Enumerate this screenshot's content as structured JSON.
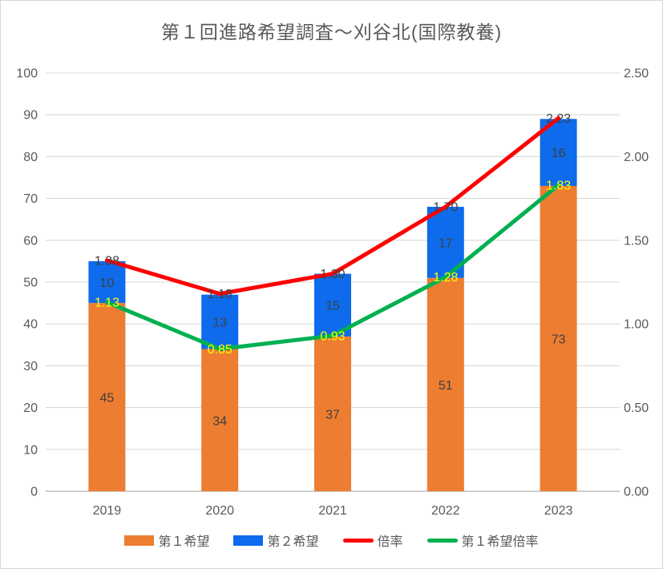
{
  "title": "第１回進路希望調査～刈谷北(国際教養)",
  "colors": {
    "background": "#FFFFFF",
    "border": "#D6D6D6",
    "grid": "#D9D9D9",
    "axis_line": "#BFBFBF",
    "tick_text": "#595959",
    "title_text": "#595959",
    "bar1": "#ED7D31",
    "bar2": "#0D6BEC",
    "line1": "#FF0000",
    "line2": "#00B050",
    "bar_label": "#404040",
    "line2_label": "#FFFF00"
  },
  "chart_data": {
    "type": "combo",
    "stacked_bars": true,
    "grid": true,
    "legend_position": "bottom",
    "title": "第１回進路希望調査～刈谷北(国際教養)",
    "categories": [
      "2019",
      "2020",
      "2021",
      "2022",
      "2023"
    ],
    "series": [
      {
        "name": "第１希望",
        "type": "bar",
        "axis": "left",
        "color": "#ED7D31",
        "label_color": "#404040",
        "values": [
          45,
          34,
          37,
          51,
          73
        ]
      },
      {
        "name": "第２希望",
        "type": "bar",
        "axis": "left",
        "color": "#0D6BEC",
        "label_color": "#404040",
        "values": [
          10,
          13,
          15,
          17,
          16
        ]
      },
      {
        "name": "倍率",
        "type": "line",
        "axis": "right",
        "color": "#FF0000",
        "label_color": "#404040",
        "values": [
          1.38,
          1.18,
          1.3,
          1.7,
          2.23
        ],
        "labels": [
          "1.38",
          "1.18",
          "1.30",
          "1.70",
          "2.23"
        ]
      },
      {
        "name": "第１希望倍率",
        "type": "line",
        "axis": "right",
        "color": "#00B050",
        "label_color": "#FFFF00",
        "values": [
          1.13,
          0.85,
          0.93,
          1.28,
          1.83
        ],
        "labels": [
          "1.13",
          "0.85",
          "0.93",
          "1.28",
          "1.83"
        ]
      }
    ],
    "left_axis": {
      "min": 0,
      "max": 100,
      "step": 10,
      "ticks": [
        "0",
        "10",
        "20",
        "30",
        "40",
        "50",
        "60",
        "70",
        "80",
        "90",
        "100"
      ]
    },
    "right_axis": {
      "min": 0,
      "max": 2.5,
      "step": 0.5,
      "ticks": [
        "0.00",
        "0.50",
        "1.00",
        "1.50",
        "2.00",
        "2.50"
      ]
    }
  }
}
